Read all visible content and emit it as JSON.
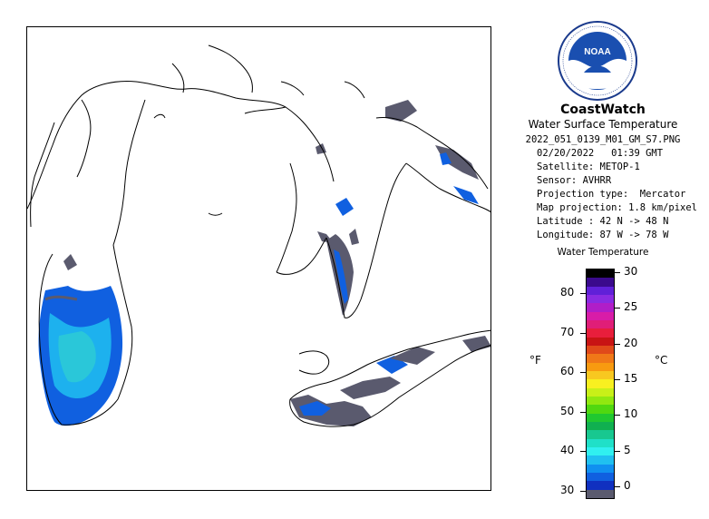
{
  "logo": {
    "icon": "noaa-logo-icon",
    "text": "NOAA",
    "ring_text": "NATIONAL OCEANIC AND ATMOSPHERIC ADMINISTRATION · U.S. DEPARTMENT OF COMMERCE"
  },
  "title": "CoastWatch",
  "subtitle": "Water Surface Temperature",
  "meta": {
    "filename": "2022_051_0139_M01_GM_S7.PNG",
    "datetime": "02/20/2022   01:39 GMT",
    "satellite": "Satellite: METOP-1",
    "sensor": "Sensor: AVHRR",
    "projection_type": "Projection type:  Mercator",
    "map_projection": "Map projection: 1.8 km/pixel",
    "latitude": "Latitude : 42 N -> 48 N",
    "longitude": "Longitude: 87 W -> 78 W"
  },
  "scale": {
    "title": "Water Temperature",
    "unit_f": "°F",
    "unit_c": "°C",
    "f_ticks": [
      "80",
      "70",
      "60",
      "50",
      "40",
      "30"
    ],
    "c_ticks": [
      "30",
      "25",
      "20",
      "15",
      "10",
      "5",
      "0"
    ],
    "colors": [
      "#000000",
      "#3a0a8c",
      "#6020d8",
      "#8a2be2",
      "#b01ec8",
      "#d81ca8",
      "#e01e78",
      "#e81e3c",
      "#c81414",
      "#e04a1a",
      "#f07818",
      "#f89a10",
      "#f8c820",
      "#f8f020",
      "#c8f018",
      "#90e810",
      "#50d810",
      "#20c830",
      "#10b050",
      "#18c890",
      "#20e0c8",
      "#30f0f0",
      "#20c0f0",
      "#1090f0",
      "#1060e0",
      "#1030c0",
      "#5a5a6e"
    ],
    "temp_range_c": [
      -1,
      30
    ]
  },
  "map": {
    "lon_range": [
      -87,
      -78
    ],
    "lat_range": [
      42,
      48
    ],
    "colors": {
      "ice_cloud": "#ffffff",
      "cold_water": "#5a5a6e",
      "water_blue": "#1060e0",
      "water_cyan": "#20c0f0",
      "coast": "#000000"
    }
  }
}
